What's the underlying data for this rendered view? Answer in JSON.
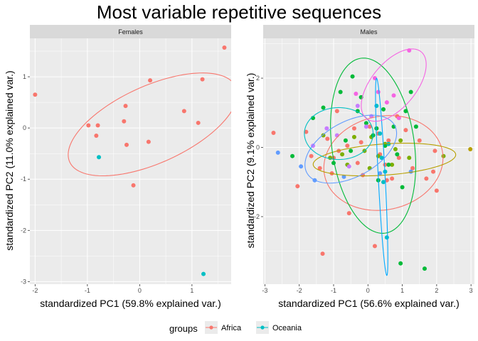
{
  "chart_data": {
    "type": "scatter",
    "title": "Most variable repetitive sequences",
    "legend": {
      "title": "groups",
      "placement": "bottom",
      "entries": [
        {
          "name": "Africa",
          "color": "#F8766D"
        },
        {
          "name": "Oceania",
          "color": "#00BFC4"
        }
      ]
    },
    "panels": [
      {
        "name": "Females",
        "xlabel": "standardized PC1 (59.8% explained var.)",
        "ylabel": "standardized PC2 (11.0% explained var.)",
        "xlim": [
          -2.1,
          1.75
        ],
        "ylim": [
          -3.05,
          1.75
        ],
        "xticks": [
          -2,
          -1,
          0,
          1
        ],
        "yticks": [
          -3,
          -2,
          -1,
          0,
          1
        ],
        "grid": true,
        "series": [
          {
            "name": "Africa",
            "color": "#F8766D",
            "points": [
              [
                -2.0,
                0.65
              ],
              [
                1.62,
                1.57
              ],
              [
                1.2,
                0.95
              ],
              [
                0.2,
                0.93
              ],
              [
                -0.27,
                0.43
              ],
              [
                0.85,
                0.33
              ],
              [
                -0.3,
                0.13
              ],
              [
                1.12,
                0.1
              ],
              [
                -0.98,
                0.05
              ],
              [
                -0.8,
                0.05
              ],
              [
                -0.83,
                -0.15
              ],
              [
                -0.25,
                -0.33
              ],
              [
                0.17,
                -0.27
              ],
              [
                -0.12,
                -1.12
              ]
            ]
          },
          {
            "name": "Oceania",
            "color": "#00BFC4",
            "points": [
              [
                -0.78,
                -0.57
              ],
              [
                1.22,
                -2.85
              ]
            ]
          }
        ],
        "ellipses": [
          {
            "group": "Africa",
            "color": "#F8766D",
            "cx": 0.25,
            "cy": 0.07,
            "rx": 1.75,
            "ry": 0.75,
            "angle_deg": 25
          }
        ]
      },
      {
        "name": "Males",
        "xlabel": "standardized PC1 (56.6% explained var.)",
        "ylabel": "standardized PC2 (9.1% explained var.)",
        "xlim": [
          -3.05,
          3.1
        ],
        "ylim": [
          -3.95,
          3.15
        ],
        "xticks": [
          -3,
          -2,
          -1,
          0,
          1,
          2,
          3
        ],
        "yticks": [
          -2,
          0,
          2
        ],
        "grid": true,
        "series": [
          {
            "name": "",
            "color": "#F8766D",
            "points": [
              [
                -2.75,
                0.42
              ],
              [
                -2.05,
                -1.12
              ],
              [
                -1.8,
                0.45
              ],
              [
                -1.65,
                -0.25
              ],
              [
                -1.4,
                -0.6
              ],
              [
                -1.32,
                -3.07
              ],
              [
                -1.18,
                0.25
              ],
              [
                -1.0,
                -0.3
              ],
              [
                -0.9,
                1.05
              ],
              [
                -0.85,
                -0.1
              ],
              [
                -0.55,
                -1.9
              ],
              [
                -0.4,
                0.55
              ],
              [
                -0.3,
                -0.45
              ],
              [
                -0.2,
                0.15
              ],
              [
                -0.15,
                -0.8
              ],
              [
                0.05,
                0.6
              ],
              [
                0.2,
                -2.85
              ],
              [
                0.35,
                -0.2
              ],
              [
                0.5,
                -0.5
              ],
              [
                0.6,
                0.2
              ],
              [
                0.7,
                -0.9
              ],
              [
                0.85,
                0.9
              ],
              [
                0.9,
                -0.3
              ],
              [
                1.1,
                0.5
              ],
              [
                1.3,
                -0.6
              ],
              [
                1.5,
                0.2
              ],
              [
                1.7,
                -0.9
              ],
              [
                1.95,
                -0.1
              ],
              [
                2.0,
                -1.25
              ],
              [
                1.9,
                -0.7
              ],
              [
                -0.6,
                0.05
              ],
              [
                0.3,
                0.4
              ],
              [
                -1.05,
                -0.75
              ],
              [
                0.55,
                -0.95
              ]
            ]
          },
          {
            "name": "",
            "color": "#7CAE00",
            "points": [
              [
                -1.1,
                -0.3
              ],
              [
                -0.75,
                -0.2
              ],
              [
                -0.4,
                0.3
              ],
              [
                -0.1,
                -0.1
              ],
              [
                0.1,
                0.3
              ],
              [
                0.3,
                -0.25
              ],
              [
                0.5,
                0.1
              ],
              [
                0.7,
                -0.5
              ],
              [
                0.95,
                0.2
              ],
              [
                1.2,
                -0.3
              ],
              [
                -0.6,
                -0.5
              ],
              [
                0.05,
                -0.6
              ],
              [
                0.8,
                -0.05
              ],
              [
                2.2,
                -0.25
              ],
              [
                -1.3,
                0.35
              ]
            ]
          },
          {
            "name": "",
            "color": "#00BA38",
            "points": [
              [
                -2.2,
                -0.25
              ],
              [
                -1.6,
                0.85
              ],
              [
                -1.3,
                1.15
              ],
              [
                -0.8,
                1.6
              ],
              [
                -0.45,
                2.05
              ],
              [
                -0.3,
                1.05
              ],
              [
                -0.05,
                0.7
              ],
              [
                0.25,
                0.55
              ],
              [
                0.5,
                0.05
              ],
              [
                0.75,
                0.6
              ],
              [
                1.0,
                -1.15
              ],
              [
                1.1,
                1.05
              ],
              [
                1.25,
                1.6
              ],
              [
                0.95,
                -3.35
              ],
              [
                1.65,
                -3.5
              ],
              [
                0.3,
                -0.95
              ],
              [
                -0.65,
                0.2
              ],
              [
                -0.2,
                1.45
              ],
              [
                0.6,
                -0.5
              ],
              [
                -1.0,
                -0.45
              ],
              [
                0.15,
                0.35
              ],
              [
                -0.5,
                -0.1
              ],
              [
                0.45,
                1.1
              ],
              [
                1.4,
                0.6
              ],
              [
                0.85,
                -0.2
              ]
            ]
          },
          {
            "name": "",
            "color": "#00BFC4",
            "points": [
              [
                0.25,
                1.2
              ],
              [
                0.35,
                0.4
              ],
              [
                0.45,
                -1.0
              ],
              [
                0.55,
                -2.6
              ],
              [
                0.6,
                0.1
              ],
              [
                0.4,
                -0.3
              ],
              [
                0.5,
                -0.7
              ]
            ]
          },
          {
            "name": "",
            "color": "#619CFF",
            "points": [
              [
                -2.62,
                -0.15
              ],
              [
                -1.95,
                -0.55
              ],
              [
                -1.55,
                -0.95
              ],
              [
                -0.7,
                -0.85
              ],
              [
                0.35,
                -0.75
              ],
              [
                1.25,
                -0.7
              ]
            ]
          },
          {
            "name": "",
            "color": "#C77CFF",
            "points": [
              [
                -1.6,
                0.05
              ],
              [
                -1.2,
                0.55
              ],
              [
                -0.9,
                0.35
              ],
              [
                -0.55,
                -0.55
              ],
              [
                0.1,
                0.9
              ],
              [
                -0.3,
                1.2
              ],
              [
                -0.05,
                0.6
              ]
            ]
          },
          {
            "name": "",
            "color": "#F564E3",
            "points": [
              [
                -0.35,
                1.55
              ],
              [
                0.2,
                2.0
              ],
              [
                0.55,
                1.3
              ],
              [
                0.9,
                0.85
              ],
              [
                1.2,
                2.8
              ],
              [
                0.3,
                1.6
              ],
              [
                0.75,
                1.5
              ]
            ]
          },
          {
            "name": "",
            "color": "#B79F00",
            "points": [
              [
                2.98,
                -0.05
              ]
            ]
          }
        ],
        "ellipses": [
          {
            "color": "#F8766D",
            "cx": 0.45,
            "cy": -0.45,
            "rx": 1.75,
            "ry": 1.35,
            "angle_deg": 12
          },
          {
            "color": "#B79F00",
            "cx": 0.48,
            "cy": -0.35,
            "rx": 2.08,
            "ry": 0.45,
            "angle_deg": 4
          },
          {
            "color": "#00BA38",
            "cx": 0.15,
            "cy": 0.05,
            "rx": 1.2,
            "ry": 2.55,
            "angle_deg": 8
          },
          {
            "color": "#00A9FF",
            "cx": 0.4,
            "cy": -0.85,
            "rx": 0.1,
            "ry": 2.85,
            "angle_deg": 3
          },
          {
            "color": "#619CFF",
            "cx": -0.5,
            "cy": -0.05,
            "rx": 1.45,
            "ry": 0.8,
            "angle_deg": 28
          },
          {
            "color": "#00BFC4",
            "cx": -0.85,
            "cy": 0.4,
            "rx": 1.0,
            "ry": 0.75,
            "angle_deg": 0
          },
          {
            "color": "#F564E3",
            "cx": 0.75,
            "cy": 1.8,
            "rx": 0.65,
            "ry": 1.25,
            "angle_deg": -40
          }
        ]
      }
    ]
  }
}
